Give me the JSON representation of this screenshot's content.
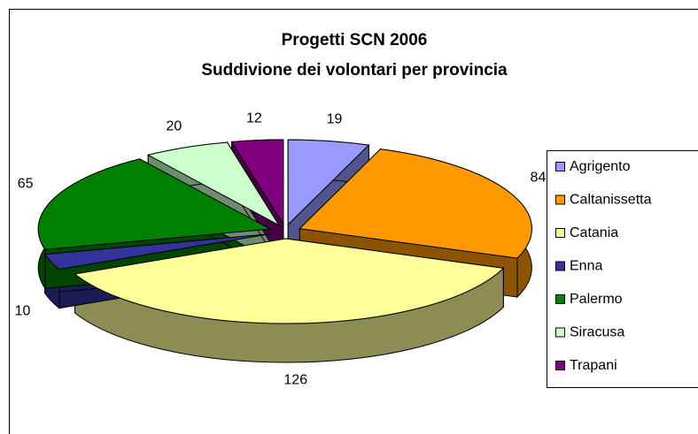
{
  "chart_data": {
    "type": "pie",
    "title": "Progetti SCN 2006",
    "subtitle": "Suddivione dei volontari per provincia",
    "categories": [
      "Agrigento",
      "Caltanissetta",
      "Catania",
      "Enna",
      "Palermo",
      "Siracusa",
      "Trapani"
    ],
    "values": [
      19,
      84,
      126,
      10,
      65,
      20,
      12
    ],
    "colors": [
      "#9999ff",
      "#ff9900",
      "#ffff99",
      "#333399",
      "#008000",
      "#ccffcc",
      "#800080"
    ],
    "legend": "right",
    "exploded": true,
    "three_d": true
  }
}
